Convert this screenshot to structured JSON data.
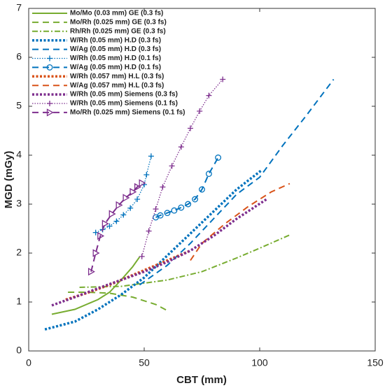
{
  "chart_data": {
    "type": "line",
    "x_label": "CBT (mm)",
    "y_label": "MGD (mGy)",
    "xlim": [
      0,
      150
    ],
    "xticks": [
      0,
      50,
      100,
      150
    ],
    "ylim": [
      0,
      7
    ],
    "yticks": [
      0,
      1,
      2,
      3,
      4,
      5,
      6,
      7
    ],
    "legend": "upper left",
    "series": [
      {
        "name": "Mo/Mo (0.03 mm) GE (0.3 fs)",
        "color": "#77ac30",
        "linestyle": "solid",
        "marker": "none",
        "x": [
          10,
          20,
          30,
          35,
          40,
          45,
          48
        ],
        "values": [
          0.75,
          0.85,
          1.05,
          1.2,
          1.45,
          1.72,
          1.92
        ]
      },
      {
        "name": "Mo/Rh (0.025 mm) GE (0.3 fs)",
        "color": "#77ac30",
        "linestyle": "dashed",
        "marker": "none",
        "x": [
          17,
          25,
          35,
          45,
          55,
          61
        ],
        "values": [
          1.2,
          1.2,
          1.18,
          1.1,
          0.95,
          0.8
        ]
      },
      {
        "name": "Rh/Rh (0.025 mm) GE (0.3 fs)",
        "color": "#77ac30",
        "linestyle": "dashdot",
        "marker": "none",
        "x": [
          22,
          40,
          60,
          75,
          90,
          100,
          113
        ],
        "values": [
          1.3,
          1.32,
          1.45,
          1.62,
          1.9,
          2.1,
          2.37
        ]
      },
      {
        "name": "W/Rh (0.05 mm) H.D (0.3 fs)",
        "color": "#0072bd",
        "linestyle": "dotted-thick",
        "marker": "none",
        "x": [
          7,
          20,
          30,
          40,
          50,
          60,
          70,
          80,
          90,
          101
        ],
        "values": [
          0.44,
          0.6,
          0.85,
          1.15,
          1.5,
          1.95,
          2.4,
          2.85,
          3.3,
          3.7
        ]
      },
      {
        "name": "W/Ag (0.05 mm) H.D (0.3 fs)",
        "color": "#0072bd",
        "linestyle": "dashed",
        "marker": "none",
        "x": [
          48,
          60,
          70,
          80,
          90,
          100,
          110,
          120,
          132
        ],
        "values": [
          1.35,
          1.75,
          2.2,
          2.7,
          3.2,
          3.55,
          4.2,
          4.8,
          5.55
        ]
      },
      {
        "name": "W/Rh (0.05 mm) H.D (0.1 fs)",
        "color": "#0072bd",
        "linestyle": "dotted",
        "marker": "plus",
        "x": [
          29,
          32,
          35,
          38,
          41,
          44,
          47,
          50,
          51,
          53
        ],
        "values": [
          2.42,
          2.48,
          2.55,
          2.65,
          2.78,
          2.92,
          3.1,
          3.4,
          3.6,
          3.98
        ]
      },
      {
        "name": "W/Ag (0.05 mm) H.D (0.1 fs)",
        "color": "#0072bd",
        "linestyle": "dashed",
        "marker": "circle",
        "x": [
          55,
          57,
          60,
          63,
          66,
          69,
          72,
          75,
          78,
          82
        ],
        "values": [
          2.73,
          2.77,
          2.82,
          2.87,
          2.93,
          3.0,
          3.1,
          3.3,
          3.62,
          3.95
        ]
      },
      {
        "name": "W/Rh (0.057 mm) H.L (0.3 fs)",
        "color": "#d95319",
        "linestyle": "dotted-thick",
        "marker": "none",
        "x": [
          16,
          25,
          35,
          45,
          55,
          65,
          70
        ],
        "values": [
          1.05,
          1.18,
          1.35,
          1.55,
          1.75,
          1.95,
          2.05
        ]
      },
      {
        "name": "W/Ag (0.057 mm) H.L (0.3 fs)",
        "color": "#d95319",
        "linestyle": "dashed",
        "marker": "none",
        "x": [
          70,
          75,
          85,
          95,
          105,
          113
        ],
        "values": [
          1.85,
          2.2,
          2.6,
          2.95,
          3.25,
          3.42
        ]
      },
      {
        "name": "W/Rh (0.05 mm) Siemens (0.3 fs)",
        "color": "#7e2f8e",
        "linestyle": "dotted-thick",
        "marker": "none",
        "x": [
          10,
          20,
          30,
          40,
          50,
          60,
          70,
          80,
          90,
          103
        ],
        "values": [
          0.93,
          1.1,
          1.28,
          1.45,
          1.62,
          1.82,
          2.05,
          2.35,
          2.7,
          3.1
        ]
      },
      {
        "name": "W/Rh (0.05 mm) Siemens (0.1 fs)",
        "color": "#7e2f8e",
        "linestyle": "dotted",
        "marker": "plus",
        "x": [
          49,
          52,
          55,
          58,
          62,
          66,
          70,
          74,
          78,
          84
        ],
        "values": [
          1.93,
          2.45,
          2.9,
          3.35,
          3.78,
          4.17,
          4.55,
          4.9,
          5.22,
          5.55
        ]
      },
      {
        "name": "Mo/Rh (0.025 mm) Siemens (0.1 fs)",
        "color": "#7e2f8e",
        "linestyle": "dashed",
        "marker": "triangle-right",
        "x": [
          27,
          29,
          31,
          33,
          36,
          39,
          42,
          45,
          47,
          49
        ],
        "values": [
          1.62,
          2.0,
          2.35,
          2.6,
          2.8,
          2.98,
          3.13,
          3.25,
          3.35,
          3.43
        ]
      }
    ]
  }
}
